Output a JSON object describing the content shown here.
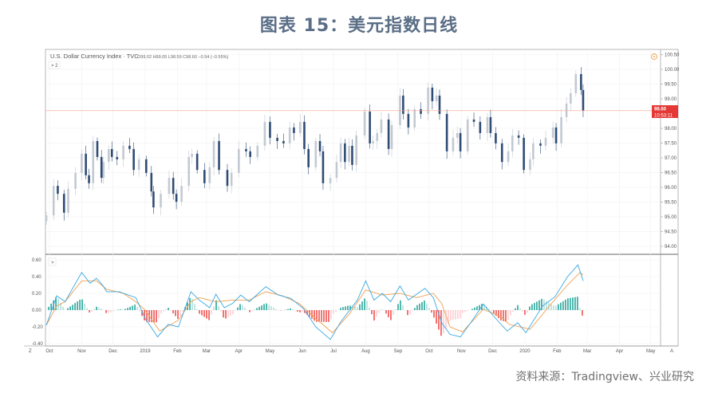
{
  "title": "图表 15：美元指数日线",
  "source": "资料来源：Tradingview、兴业研究",
  "header": {
    "symbol": "U.S. Dollar Currency Index · TVC",
    "ohlc": "O99.02 H99.05 L98.59 C98.60 −0.54 (−0.55%)",
    "indicator_toggle": "> 2",
    "macd_toggle": ">"
  },
  "price_badge": {
    "value": "98.60",
    "countdown": "10:53:11",
    "color": "#e53935"
  },
  "buttons": {
    "timezone": "Z",
    "auto_scale": "A"
  },
  "colors": {
    "up": "#c3c9d2",
    "down": "#2f4c74",
    "macd": "#3aa8e0",
    "signal": "#f0a050",
    "hist_pos": "#26a69a",
    "hist_pos_light": "#b2dfdb",
    "hist_neg": "#ef5350",
    "hist_neg_light": "#ffcdd2",
    "last_line": "#f4a38f"
  },
  "chart_data": [
    {
      "type": "candlestick",
      "title": "",
      "ylim": [
        93.75,
        100.6
      ],
      "y_ticks": [
        "100.50",
        "100.00",
        "99.50",
        "99.00",
        "98.00",
        "97.50",
        "97.00",
        "96.50",
        "96.00",
        "95.50",
        "95.00",
        "94.50",
        "94.00"
      ],
      "last_price": 98.6,
      "x_ticks": [
        {
          "label": "Oct",
          "date": "2018-10-01"
        },
        {
          "label": "Nov",
          "date": "2018-11-01"
        },
        {
          "label": "Dec",
          "date": "2018-12-01"
        },
        {
          "label": "2019",
          "date": "2019-01-01"
        },
        {
          "label": "Feb",
          "date": "2019-02-01"
        },
        {
          "label": "Mar",
          "date": "2019-03-01"
        },
        {
          "label": "Apr",
          "date": "2019-04-01"
        },
        {
          "label": "May",
          "date": "2019-05-01"
        },
        {
          "label": "Jun",
          "date": "2019-06-01"
        },
        {
          "label": "Jul",
          "date": "2019-07-01"
        },
        {
          "label": "Aug",
          "date": "2019-08-01"
        },
        {
          "label": "Sep",
          "date": "2019-09-01"
        },
        {
          "label": "Oct",
          "date": "2019-10-01"
        },
        {
          "label": "Nov",
          "date": "2019-11-01"
        },
        {
          "label": "Dec",
          "date": "2019-12-01"
        },
        {
          "label": "2020",
          "date": "2020-01-01"
        },
        {
          "label": "Feb",
          "date": "2020-02-01"
        },
        {
          "label": "Mar",
          "date": "2020-03-01"
        },
        {
          "label": "Apr",
          "date": "2020-04-01"
        },
        {
          "label": "May",
          "date": "2020-05-01"
        }
      ],
      "closes": [
        [
          "2018-09-28",
          95.05
        ],
        [
          "2018-10-05",
          96.05
        ],
        [
          "2018-10-09",
          95.78
        ],
        [
          "2018-10-15",
          95.14
        ],
        [
          "2018-10-19",
          95.95
        ],
        [
          "2018-10-26",
          96.49
        ],
        [
          "2018-11-01",
          97.14
        ],
        [
          "2018-11-05",
          96.41
        ],
        [
          "2018-11-08",
          96.14
        ],
        [
          "2018-11-12",
          97.57
        ],
        [
          "2018-11-16",
          97.03
        ],
        [
          "2018-11-20",
          96.32
        ],
        [
          "2018-11-22",
          96.86
        ],
        [
          "2018-11-27",
          97.3
        ],
        [
          "2018-11-30",
          97.03
        ],
        [
          "2018-12-05",
          96.95
        ],
        [
          "2018-12-11",
          97.41
        ],
        [
          "2018-12-17",
          97.3
        ],
        [
          "2018-12-21",
          96.59
        ],
        [
          "2018-12-26",
          96.95
        ],
        [
          "2019-01-02",
          96.49
        ],
        [
          "2019-01-07",
          95.86
        ],
        [
          "2019-01-09",
          95.32
        ],
        [
          "2019-01-16",
          95.78
        ],
        [
          "2019-01-24",
          96.32
        ],
        [
          "2019-01-28",
          95.78
        ],
        [
          "2019-01-31",
          95.51
        ],
        [
          "2019-02-05",
          96.05
        ],
        [
          "2019-02-12",
          97.03
        ],
        [
          "2019-02-15",
          97.14
        ],
        [
          "2019-02-20",
          96.59
        ],
        [
          "2019-02-27",
          96.14
        ],
        [
          "2019-03-04",
          96.68
        ],
        [
          "2019-03-08",
          97.57
        ],
        [
          "2019-03-13",
          96.59
        ],
        [
          "2019-03-21",
          96.05
        ],
        [
          "2019-03-25",
          96.49
        ],
        [
          "2019-04-01",
          97.3
        ],
        [
          "2019-04-08",
          97.22
        ],
        [
          "2019-04-12",
          97.03
        ],
        [
          "2019-04-19",
          97.41
        ],
        [
          "2019-04-26",
          98.22
        ],
        [
          "2019-05-01",
          97.68
        ],
        [
          "2019-05-08",
          97.57
        ],
        [
          "2019-05-14",
          97.49
        ],
        [
          "2019-05-20",
          98.03
        ],
        [
          "2019-05-24",
          97.84
        ],
        [
          "2019-05-30",
          98.22
        ],
        [
          "2019-06-03",
          97.3
        ],
        [
          "2019-06-07",
          96.68
        ],
        [
          "2019-06-14",
          97.57
        ],
        [
          "2019-06-18",
          97.22
        ],
        [
          "2019-06-21",
          96.14
        ],
        [
          "2019-06-28",
          96.32
        ],
        [
          "2019-07-04",
          96.86
        ],
        [
          "2019-07-08",
          97.49
        ],
        [
          "2019-07-12",
          96.86
        ],
        [
          "2019-07-16",
          97.41
        ],
        [
          "2019-07-19",
          96.76
        ],
        [
          "2019-07-23",
          97.76
        ],
        [
          "2019-07-31",
          98.57
        ],
        [
          "2019-08-05",
          97.49
        ],
        [
          "2019-08-08",
          97.57
        ],
        [
          "2019-08-12",
          97.84
        ],
        [
          "2019-08-16",
          98.3
        ],
        [
          "2019-08-23",
          97.3
        ],
        [
          "2019-08-26",
          98.11
        ],
        [
          "2019-09-03",
          99.11
        ],
        [
          "2019-09-06",
          98.49
        ],
        [
          "2019-09-11",
          98.03
        ],
        [
          "2019-09-17",
          98.65
        ],
        [
          "2019-09-23",
          98.49
        ],
        [
          "2019-09-30",
          99.38
        ],
        [
          "2019-10-04",
          98.92
        ],
        [
          "2019-10-08",
          99.11
        ],
        [
          "2019-10-11",
          98.49
        ],
        [
          "2019-10-18",
          97.22
        ],
        [
          "2019-10-24",
          97.68
        ],
        [
          "2019-10-28",
          97.84
        ],
        [
          "2019-10-31",
          97.22
        ],
        [
          "2019-11-07",
          98.3
        ],
        [
          "2019-11-13",
          98.22
        ],
        [
          "2019-11-19",
          97.84
        ],
        [
          "2019-11-26",
          98.38
        ],
        [
          "2019-11-29",
          97.84
        ],
        [
          "2019-12-04",
          97.49
        ],
        [
          "2019-12-10",
          96.86
        ],
        [
          "2019-12-16",
          97.22
        ],
        [
          "2019-12-20",
          97.76
        ],
        [
          "2019-12-26",
          97.68
        ],
        [
          "2019-12-31",
          96.59
        ],
        [
          "2020-01-06",
          96.95
        ],
        [
          "2020-01-09",
          97.49
        ],
        [
          "2020-01-16",
          97.41
        ],
        [
          "2020-01-21",
          97.68
        ],
        [
          "2020-01-28",
          98.03
        ],
        [
          "2020-01-31",
          97.49
        ],
        [
          "2020-02-05",
          98.38
        ],
        [
          "2020-02-10",
          98.84
        ],
        [
          "2020-02-14",
          99.19
        ],
        [
          "2020-02-19",
          99.84
        ],
        [
          "2020-02-24",
          99.3
        ],
        [
          "2020-02-26",
          98.6
        ]
      ]
    },
    {
      "type": "line",
      "title": "",
      "ylim": [
        -0.45,
        0.63
      ],
      "y_ticks": [
        "0.60",
        "0.40",
        "0.20",
        "0.00",
        "-0.20",
        "-0.40"
      ],
      "series": [
        {
          "key": "macd",
          "values": [
            [
              "2018-09-28",
              -0.18
            ],
            [
              "2018-10-08",
              0.17
            ],
            [
              "2018-10-16",
              0.1
            ],
            [
              "2018-11-01",
              0.45
            ],
            [
              "2018-11-09",
              0.32
            ],
            [
              "2018-11-15",
              0.38
            ],
            [
              "2018-11-21",
              0.3
            ],
            [
              "2018-11-25",
              0.22
            ],
            [
              "2018-12-07",
              0.22
            ],
            [
              "2018-12-23",
              0.15
            ],
            [
              "2019-01-01",
              -0.1
            ],
            [
              "2019-01-13",
              -0.32
            ],
            [
              "2019-01-23",
              -0.17
            ],
            [
              "2019-02-02",
              -0.2
            ],
            [
              "2019-02-14",
              0.22
            ],
            [
              "2019-02-22",
              0.12
            ],
            [
              "2019-03-04",
              0.03
            ],
            [
              "2019-03-10",
              0.19
            ],
            [
              "2019-03-18",
              0.03
            ],
            [
              "2019-03-26",
              0.08
            ],
            [
              "2019-04-03",
              0.18
            ],
            [
              "2019-04-11",
              0.1
            ],
            [
              "2019-04-27",
              0.28
            ],
            [
              "2019-05-09",
              0.18
            ],
            [
              "2019-05-21",
              0.14
            ],
            [
              "2019-06-02",
              0.02
            ],
            [
              "2019-06-14",
              -0.2
            ],
            [
              "2019-06-28",
              -0.35
            ],
            [
              "2019-07-08",
              -0.14
            ],
            [
              "2019-07-24",
              0.12
            ],
            [
              "2019-08-01",
              0.35
            ],
            [
              "2019-08-09",
              0.12
            ],
            [
              "2019-08-17",
              0.2
            ],
            [
              "2019-08-25",
              0.1
            ],
            [
              "2019-09-03",
              0.29
            ],
            [
              "2019-09-11",
              0.12
            ],
            [
              "2019-09-27",
              0.26
            ],
            [
              "2019-10-05",
              0.15
            ],
            [
              "2019-10-13",
              -0.15
            ],
            [
              "2019-10-21",
              -0.29
            ],
            [
              "2019-10-31",
              -0.32
            ],
            [
              "2019-11-10",
              -0.15
            ],
            [
              "2019-11-22",
              0.07
            ],
            [
              "2019-12-04",
              -0.1
            ],
            [
              "2019-12-15",
              -0.25
            ],
            [
              "2019-12-25",
              -0.15
            ],
            [
              "2020-01-02",
              -0.27
            ],
            [
              "2020-01-18",
              0.05
            ],
            [
              "2020-01-30",
              0.16
            ],
            [
              "2020-02-11",
              0.4
            ],
            [
              "2020-02-21",
              0.54
            ],
            [
              "2020-02-26",
              0.35
            ]
          ]
        },
        {
          "key": "signal",
          "values": [
            [
              "2018-09-28",
              -0.18
            ],
            [
              "2018-10-08",
              0.05
            ],
            [
              "2018-10-16",
              0.1
            ],
            [
              "2018-11-01",
              0.35
            ],
            [
              "2018-11-15",
              0.35
            ],
            [
              "2018-11-25",
              0.25
            ],
            [
              "2018-12-11",
              0.2
            ],
            [
              "2018-12-23",
              0.1
            ],
            [
              "2019-01-01",
              0.0
            ],
            [
              "2019-01-15",
              -0.25
            ],
            [
              "2019-02-02",
              -0.12
            ],
            [
              "2019-02-14",
              0.1
            ],
            [
              "2019-02-22",
              0.15
            ],
            [
              "2019-03-10",
              0.1
            ],
            [
              "2019-03-26",
              0.12
            ],
            [
              "2019-04-11",
              0.12
            ],
            [
              "2019-04-27",
              0.22
            ],
            [
              "2019-05-13",
              0.17
            ],
            [
              "2019-05-29",
              0.08
            ],
            [
              "2019-06-14",
              -0.1
            ],
            [
              "2019-06-30",
              -0.27
            ],
            [
              "2019-07-16",
              -0.05
            ],
            [
              "2019-08-01",
              0.24
            ],
            [
              "2019-08-17",
              0.18
            ],
            [
              "2019-09-03",
              0.2
            ],
            [
              "2019-09-19",
              0.15
            ],
            [
              "2019-10-05",
              0.2
            ],
            [
              "2019-10-13",
              0.08
            ],
            [
              "2019-10-21",
              -0.2
            ],
            [
              "2019-11-02",
              -0.26
            ],
            [
              "2019-11-14",
              -0.1
            ],
            [
              "2019-11-22",
              0.01
            ],
            [
              "2019-12-09",
              -0.08
            ],
            [
              "2019-12-17",
              -0.17
            ],
            [
              "2020-01-06",
              -0.23
            ],
            [
              "2020-01-26",
              0.07
            ],
            [
              "2020-02-11",
              0.3
            ],
            [
              "2020-02-23",
              0.45
            ],
            [
              "2020-02-26",
              0.42
            ]
          ]
        }
      ]
    }
  ]
}
